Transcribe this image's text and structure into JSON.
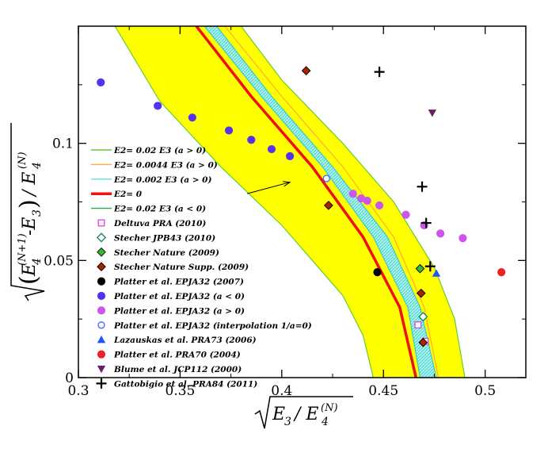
{
  "chart_data": {
    "type": "scatter",
    "xlabel": "√(E3 / E4(N))",
    "ylabel": "√((E4(N+1) - E3) / E4(N))",
    "xlim": [
      0.3,
      0.52
    ],
    "ylim": [
      0,
      0.15
    ],
    "xticks": [
      "0.3",
      "0.35",
      "0.4",
      "0.45",
      "0.5"
    ],
    "yticks": [
      "0",
      "0.05",
      "0.1"
    ],
    "bands": [
      {
        "name": "E2= 0.02 E3 (a > 0)",
        "color": "#66cc33",
        "fill": "#ffff00",
        "left": [
          [
            0.318,
            0.15
          ],
          [
            0.34,
            0.118
          ],
          [
            0.37,
            0.09
          ],
          [
            0.4,
            0.065
          ],
          [
            0.43,
            0.035
          ],
          [
            0.44,
            0.018
          ],
          [
            0.445,
            0
          ]
        ],
        "right": [
          [
            0.38,
            0.15
          ],
          [
            0.4,
            0.127
          ],
          [
            0.43,
            0.1
          ],
          [
            0.455,
            0.075
          ],
          [
            0.475,
            0.047
          ],
          [
            0.485,
            0.025
          ],
          [
            0.49,
            0
          ]
        ]
      },
      {
        "name": "E2= 0.002 E3 (a > 0)",
        "color": "#33cccc",
        "fill": "#66e0d6",
        "left": [
          [
            0.362,
            0.15
          ],
          [
            0.39,
            0.12
          ],
          [
            0.42,
            0.09
          ],
          [
            0.445,
            0.06
          ],
          [
            0.462,
            0.03
          ],
          [
            0.468,
            0
          ]
        ],
        "right": [
          [
            0.368,
            0.15
          ],
          [
            0.395,
            0.12
          ],
          [
            0.425,
            0.09
          ],
          [
            0.452,
            0.06
          ],
          [
            0.468,
            0.03
          ],
          [
            0.476,
            0
          ]
        ]
      }
    ],
    "lines": [
      {
        "name": "E2= 0.0044 E3 (a > 0)",
        "color": "#ffaa33",
        "width": 1.2,
        "points": [
          [
            0.372,
            0.15
          ],
          [
            0.4,
            0.12
          ],
          [
            0.43,
            0.09
          ],
          [
            0.455,
            0.06
          ],
          [
            0.47,
            0.03
          ],
          [
            0.477,
            0
          ]
        ]
      },
      {
        "name": "E2= 0",
        "color": "#ee1111",
        "width": 3.5,
        "points": [
          [
            0.358,
            0.15
          ],
          [
            0.385,
            0.12
          ],
          [
            0.415,
            0.09
          ],
          [
            0.44,
            0.06
          ],
          [
            0.458,
            0.03
          ],
          [
            0.466,
            0
          ]
        ]
      }
    ],
    "series": [
      {
        "name": "Deltuva PRA (2010)",
        "marker": "square-open",
        "color": "#dd44dd",
        "points": [
          [
            0.467,
            0.0225
          ],
          [
            0.4705,
            0.0155
          ]
        ]
      },
      {
        "name": "Stecher JPB43 (2010)",
        "marker": "diamond-open",
        "color": "#008866",
        "points": [
          [
            0.4695,
            0.026
          ]
        ]
      },
      {
        "name": "Stecher Nature (2009)",
        "marker": "diamond",
        "color": "#33bb33",
        "points": [
          [
            0.468,
            0.0465
          ]
        ]
      },
      {
        "name": "Stecher Nature Supp. (2009)",
        "marker": "diamond",
        "color": "#aa2200",
        "points": [
          [
            0.412,
            0.131
          ],
          [
            0.423,
            0.0735
          ],
          [
            0.4685,
            0.036
          ],
          [
            0.4695,
            0.015
          ]
        ]
      },
      {
        "name": "Platter et al. EPJA32 (2007)",
        "marker": "circle",
        "color": "#000000",
        "points": [
          [
            0.447,
            0.045
          ]
        ]
      },
      {
        "name": "Platter et al. EPJA32 (a < 0)",
        "marker": "circle",
        "color": "#5533ee",
        "points": [
          [
            0.311,
            0.126
          ],
          [
            0.339,
            0.116
          ],
          [
            0.356,
            0.111
          ],
          [
            0.374,
            0.1055
          ],
          [
            0.385,
            0.1015
          ],
          [
            0.395,
            0.0975
          ],
          [
            0.404,
            0.0945
          ]
        ]
      },
      {
        "name": "Platter et al. EPJA32 (a > 0)",
        "marker": "circle",
        "color": "#cc55ee",
        "points": [
          [
            0.435,
            0.0785
          ],
          [
            0.439,
            0.0765
          ],
          [
            0.442,
            0.0755
          ],
          [
            0.448,
            0.0735
          ],
          [
            0.461,
            0.0695
          ],
          [
            0.47,
            0.065
          ],
          [
            0.478,
            0.0615
          ],
          [
            0.489,
            0.0595
          ]
        ]
      },
      {
        "name": "Platter et al. EPJA32 (interpolation 1/a=0)",
        "marker": "circle-open",
        "color": "#3366ff",
        "points": [
          [
            0.422,
            0.085
          ]
        ]
      },
      {
        "name": "Lazauskas et al. PRA73 (2006)",
        "marker": "triangle-up",
        "color": "#2255ee",
        "points": [
          [
            0.476,
            0.0445
          ]
        ]
      },
      {
        "name": "Platter et al. PRA70 (2004)",
        "marker": "circle",
        "color": "#ee2222",
        "points": [
          [
            0.508,
            0.045
          ]
        ]
      },
      {
        "name": "Blume et al. JCP112 (2000)",
        "marker": "triangle-down",
        "color": "#662266",
        "points": [
          [
            0.474,
            0.113
          ]
        ]
      },
      {
        "name": "Gattobigio et al. PRA84 (2011)",
        "marker": "plus",
        "color": "#000000",
        "points": [
          [
            0.448,
            0.1305
          ],
          [
            0.469,
            0.0815
          ],
          [
            0.471,
            0.066
          ],
          [
            0.473,
            0.0475
          ]
        ]
      }
    ],
    "legend": [
      {
        "label": "E2= 0.02 E3 (a > 0)",
        "marker": "line",
        "color": "#66cc33"
      },
      {
        "label": "E2= 0.0044 E3 (a > 0)",
        "marker": "line",
        "color": "#ffaa33"
      },
      {
        "label": "E2= 0.002 E3 (a > 0)",
        "marker": "line",
        "color": "#66e0d6"
      },
      {
        "label": "E2= 0",
        "marker": "thickline",
        "color": "#ee1111"
      },
      {
        "label": "E2= 0.02 E3  (a < 0)",
        "marker": "line",
        "color": "#33aa33"
      },
      {
        "label": "Deltuva PRA (2010)",
        "marker": "square-open",
        "color": "#dd44dd"
      },
      {
        "label": "Stecher JPB43 (2010)",
        "marker": "diamond-open",
        "color": "#008866"
      },
      {
        "label": "Stecher Nature (2009)",
        "marker": "diamond",
        "color": "#33bb33"
      },
      {
        "label": "Stecher Nature Supp. (2009)",
        "marker": "diamond",
        "color": "#aa2200"
      },
      {
        "label": "Platter et al. EPJA32 (2007)",
        "marker": "circle",
        "color": "#000000"
      },
      {
        "label": "Platter et al. EPJA32 (a < 0)",
        "marker": "circle",
        "color": "#5533ee"
      },
      {
        "label": "Platter et al. EPJA32 (a > 0)",
        "marker": "circle",
        "color": "#cc55ee"
      },
      {
        "label": "Platter et al. EPJA32 (interpolation 1/a=0)",
        "marker": "circle-open",
        "color": "#3366ff"
      },
      {
        "label": "Lazauskas et al. PRA73 (2006)",
        "marker": "triangle-up",
        "color": "#2255ee"
      },
      {
        "label": "Platter et al. PRA70 (2004)",
        "marker": "circle",
        "color": "#ee2222"
      },
      {
        "label": "Blume et al. JCP112 (2000)",
        "marker": "triangle-down",
        "color": "#662266"
      },
      {
        "label": "Gattobigio et al. PRA84 (2011)",
        "marker": "plus",
        "color": "#000000"
      }
    ],
    "annotation": {
      "type": "arrow",
      "from": [
        0.383,
        0.0785
      ],
      "to": [
        0.404,
        0.0834
      ]
    }
  }
}
